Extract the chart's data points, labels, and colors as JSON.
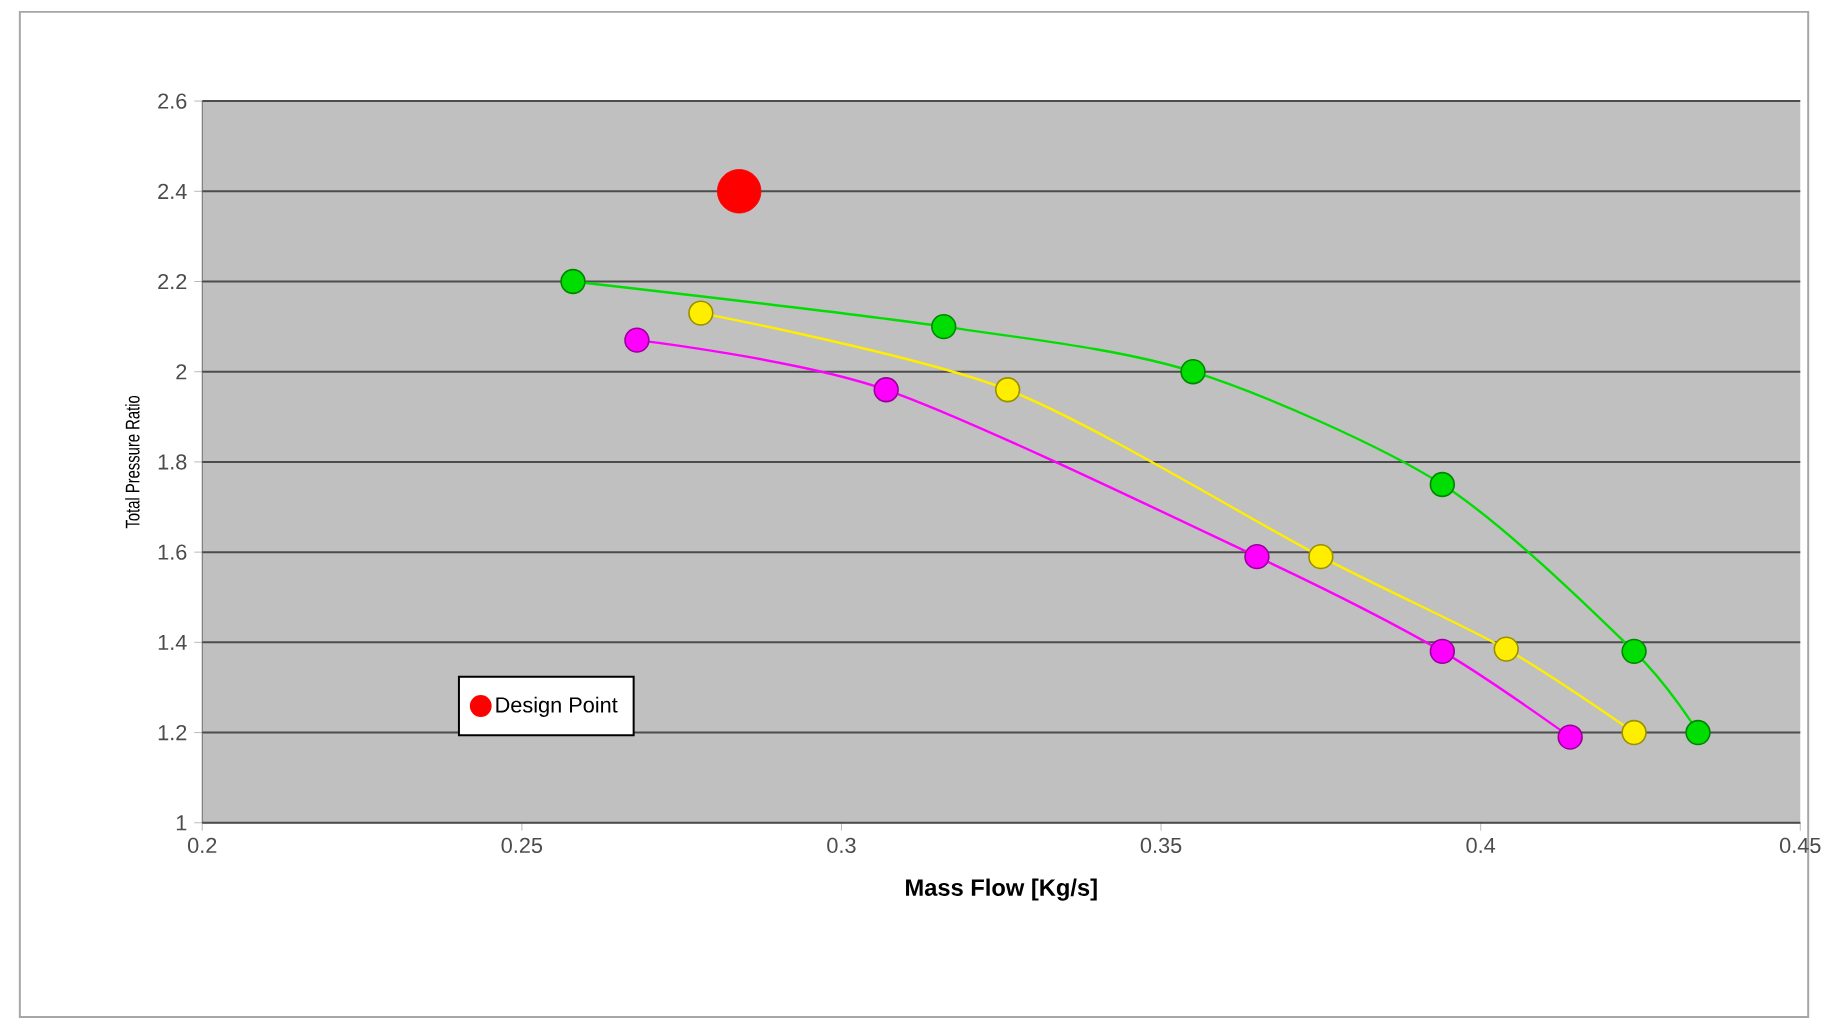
{
  "chart_data": {
    "type": "line",
    "xlabel": "Mass Flow [Kg/s]",
    "ylabel": "Total Pressure Ratio",
    "xlim": [
      0.2,
      0.45
    ],
    "xticks": [
      0.2,
      0.25,
      0.3,
      0.35,
      0.4,
      0.45
    ],
    "ylim": [
      1,
      2.6
    ],
    "yticks": [
      1,
      1.2,
      1.4,
      1.6,
      1.8,
      2,
      2.2,
      2.4,
      2.6
    ],
    "grid": "y",
    "marker": "circle",
    "legend": "bottom left",
    "series": [
      {
        "type": "scatter",
        "name": "Design Point",
        "color": "#ff0000",
        "x": [
          0.284
        ],
        "values": [
          2.4
        ]
      },
      {
        "color": "#00dd00",
        "x": [
          0.258,
          0.316,
          0.355,
          0.394,
          0.424,
          0.434
        ],
        "values": [
          2.2,
          2.1,
          2.0,
          1.75,
          1.38,
          1.2
        ]
      },
      {
        "color": "#ffee00",
        "x": [
          0.278,
          0.326,
          0.375,
          0.404,
          0.424
        ],
        "values": [
          2.13,
          1.96,
          1.59,
          1.385,
          1.2
        ]
      },
      {
        "color": "#ff00ff",
        "x": [
          0.268,
          0.307,
          0.365,
          0.394,
          0.414
        ],
        "values": [
          2.07,
          1.96,
          1.59,
          1.38,
          1.19
        ]
      }
    ]
  }
}
